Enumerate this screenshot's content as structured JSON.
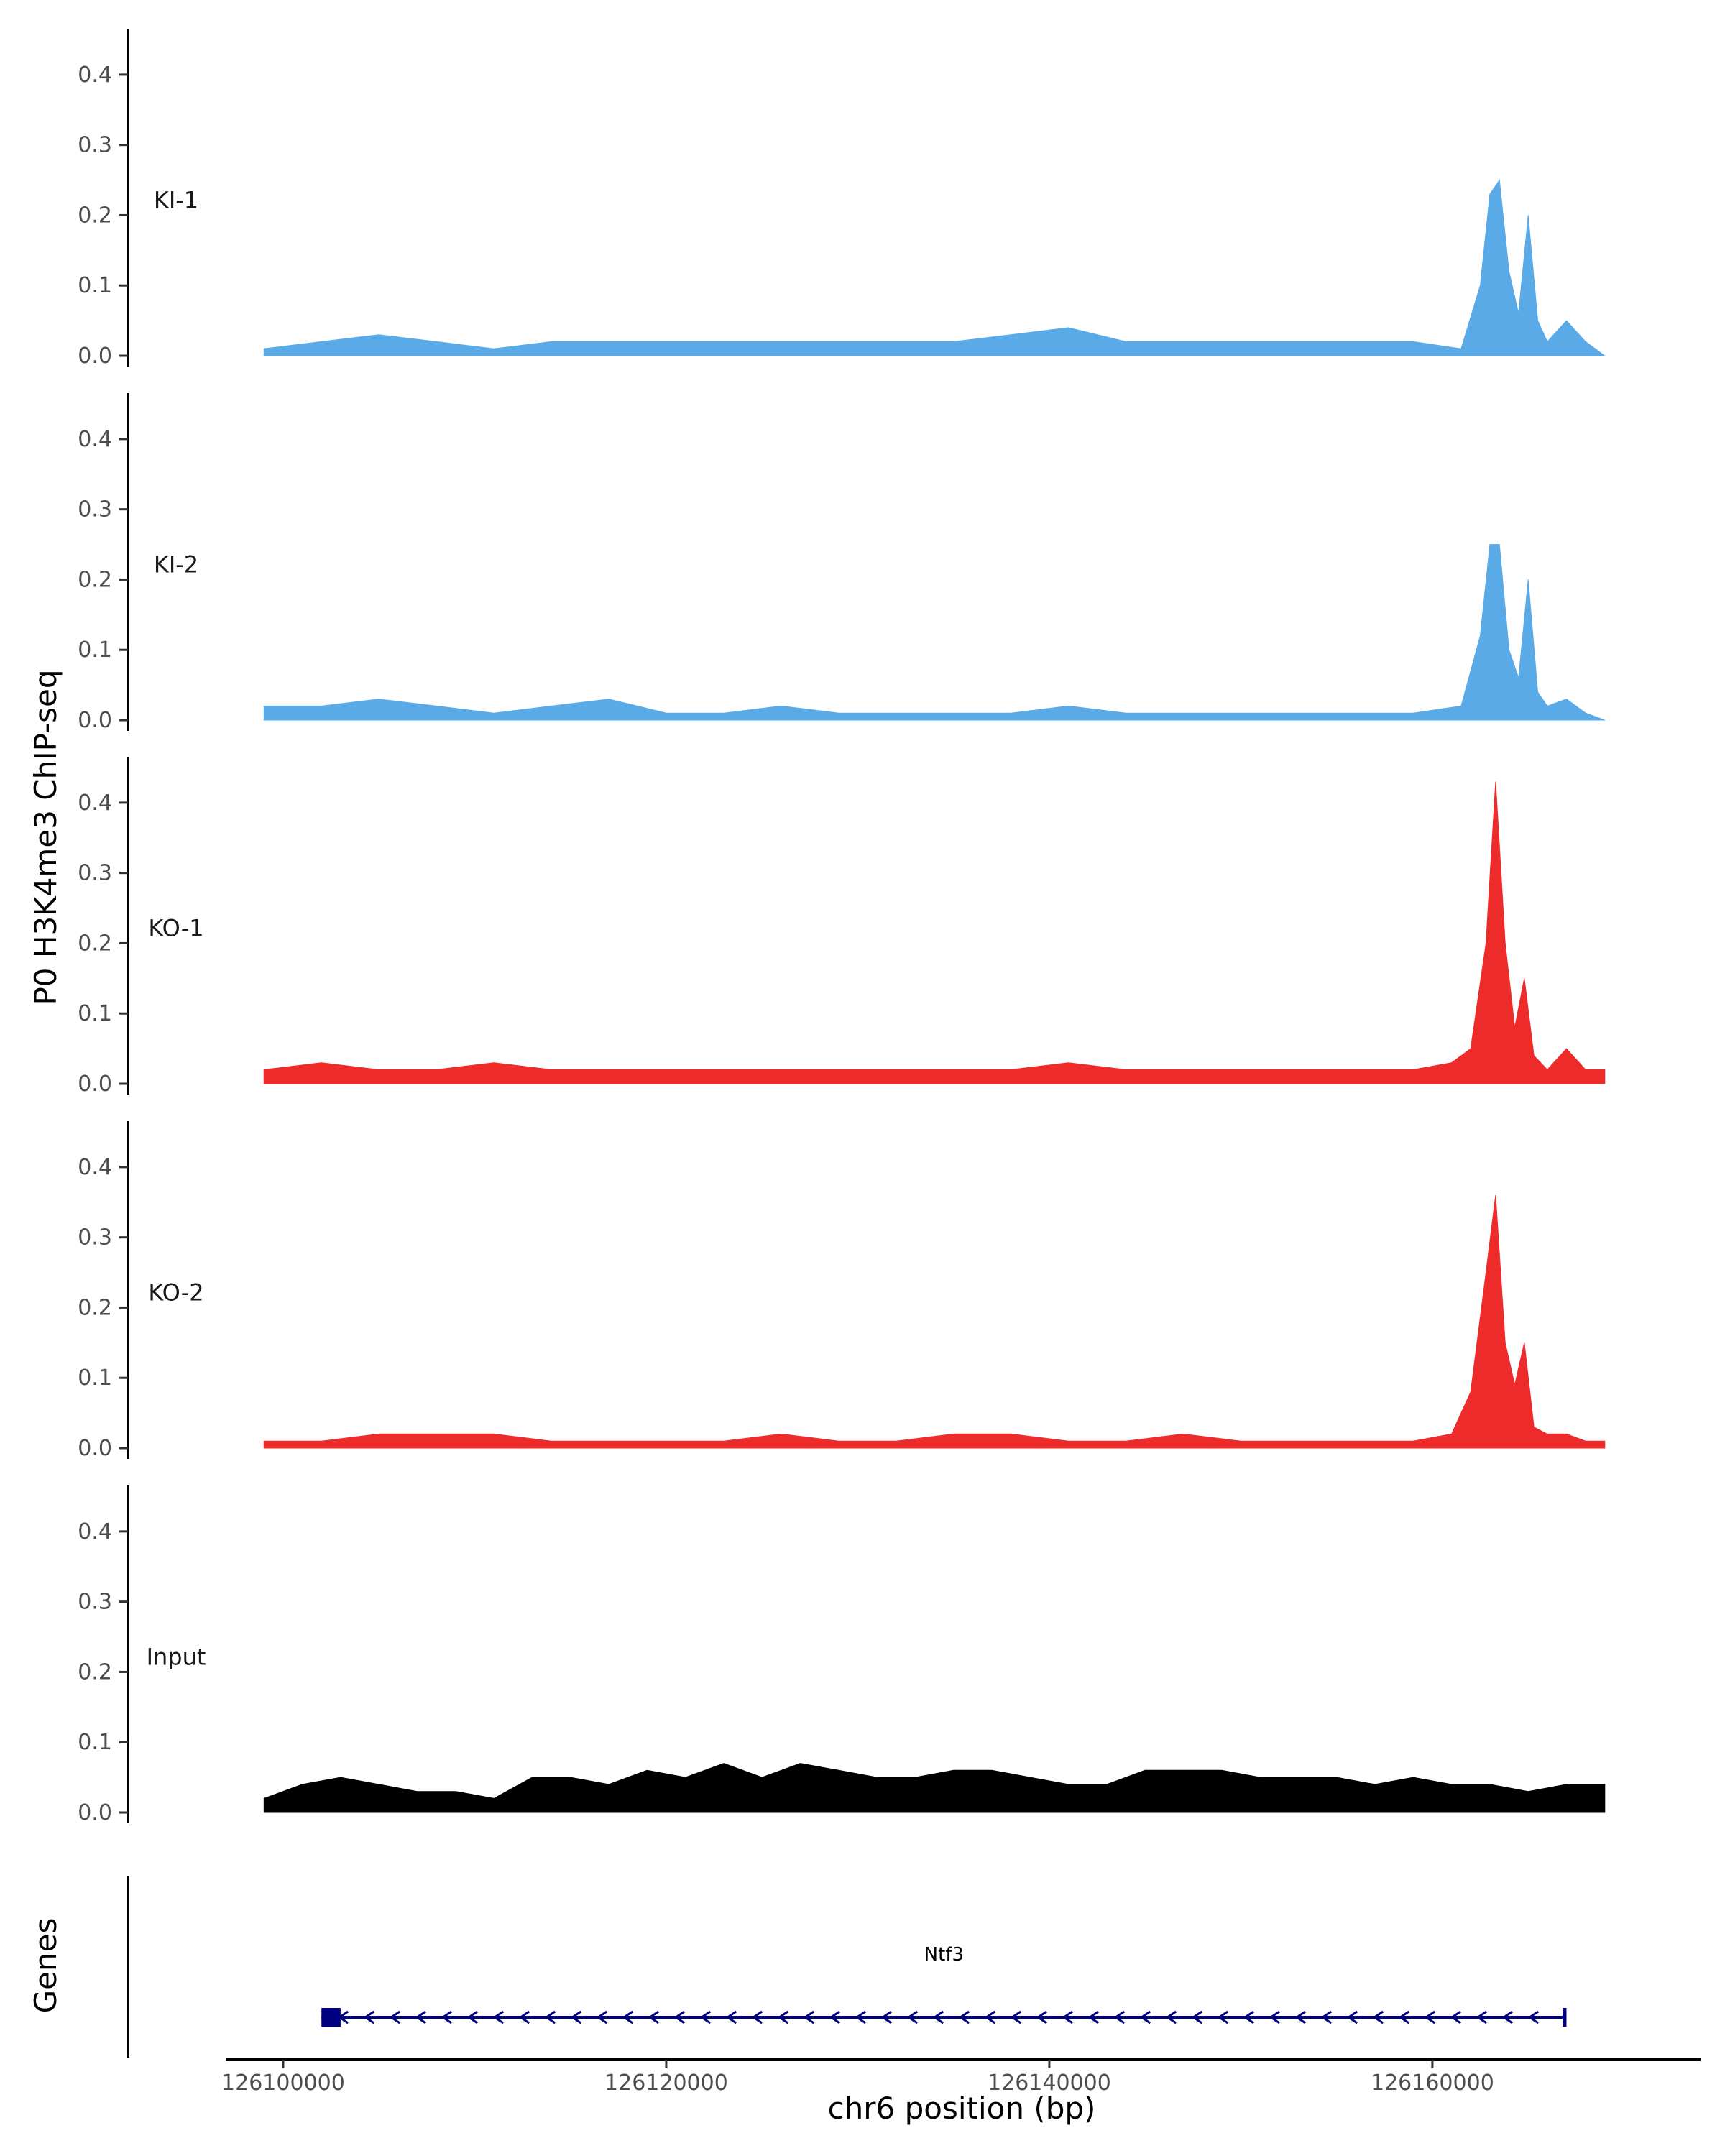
{
  "chart_data": {
    "type": "area",
    "ylabel": "P0 H3K4me3 ChIP-seq",
    "xlabel": "chr6 position (bp)",
    "xlim": [
      126097000,
      126174000
    ],
    "ylim": [
      0,
      0.45
    ],
    "y_ticks": [
      "0.0",
      "0.1",
      "0.2",
      "0.3",
      "0.4"
    ],
    "y_tick_values": [
      0,
      0.1,
      0.2,
      0.3,
      0.4
    ],
    "x_ticks": [
      "126100000",
      "126120000",
      "126140000",
      "126160000"
    ],
    "x_tick_values": [
      126100000,
      126120000,
      126140000,
      126160000
    ],
    "grid": false,
    "legend": "none",
    "tracks": [
      {
        "name": "KI-1",
        "color": "#5aaae8",
        "x": [
          126099000,
          126102000,
          126105000,
          126108000,
          126111000,
          126114000,
          126117000,
          126120000,
          126123000,
          126126000,
          126129000,
          126132000,
          126135000,
          126138000,
          126141000,
          126144000,
          126147000,
          126150000,
          126153000,
          126156000,
          126159000,
          126161500,
          126162500,
          126163000,
          126163500,
          126164000,
          126164500,
          126165000,
          126165500,
          126166000,
          126167000,
          126168000,
          126169000
        ],
        "values": [
          0.01,
          0.02,
          0.03,
          0.02,
          0.01,
          0.02,
          0.02,
          0.02,
          0.02,
          0.02,
          0.02,
          0.02,
          0.02,
          0.03,
          0.04,
          0.02,
          0.02,
          0.02,
          0.02,
          0.02,
          0.02,
          0.01,
          0.1,
          0.23,
          0.25,
          0.12,
          0.06,
          0.2,
          0.05,
          0.02,
          0.05,
          0.02,
          0.0
        ]
      },
      {
        "name": "KI-2",
        "color": "#5aaae8",
        "x": [
          126099000,
          126102000,
          126105000,
          126108000,
          126111000,
          126114000,
          126117000,
          126120000,
          126123000,
          126126000,
          126129000,
          126132000,
          126135000,
          126138000,
          126141000,
          126144000,
          126147000,
          126150000,
          126153000,
          126156000,
          126159000,
          126161500,
          126162500,
          126163000,
          126163500,
          126164000,
          126164500,
          126165000,
          126165500,
          126166000,
          126167000,
          126168000,
          126169000
        ],
        "values": [
          0.02,
          0.02,
          0.03,
          0.02,
          0.01,
          0.02,
          0.03,
          0.01,
          0.01,
          0.02,
          0.01,
          0.01,
          0.01,
          0.01,
          0.02,
          0.01,
          0.01,
          0.01,
          0.01,
          0.01,
          0.01,
          0.02,
          0.12,
          0.25,
          0.25,
          0.1,
          0.06,
          0.2,
          0.04,
          0.02,
          0.03,
          0.01,
          0.0
        ]
      },
      {
        "name": "KO-1",
        "color": "#ee2b2b",
        "x": [
          126099000,
          126102000,
          126105000,
          126108000,
          126111000,
          126114000,
          126117000,
          126120000,
          126123000,
          126126000,
          126129000,
          126132000,
          126135000,
          126138000,
          126141000,
          126144000,
          126147000,
          126150000,
          126153000,
          126156000,
          126159000,
          126161000,
          126162000,
          126162800,
          126163300,
          126163800,
          126164300,
          126164800,
          126165300,
          126166000,
          126167000,
          126168000,
          126169000
        ],
        "values": [
          0.02,
          0.03,
          0.02,
          0.02,
          0.03,
          0.02,
          0.02,
          0.02,
          0.02,
          0.02,
          0.02,
          0.02,
          0.02,
          0.02,
          0.03,
          0.02,
          0.02,
          0.02,
          0.02,
          0.02,
          0.02,
          0.03,
          0.05,
          0.2,
          0.43,
          0.2,
          0.08,
          0.15,
          0.04,
          0.02,
          0.05,
          0.02,
          0.02
        ]
      },
      {
        "name": "KO-2",
        "color": "#ee2b2b",
        "x": [
          126099000,
          126102000,
          126105000,
          126108000,
          126111000,
          126114000,
          126117000,
          126120000,
          126123000,
          126126000,
          126129000,
          126132000,
          126135000,
          126138000,
          126141000,
          126144000,
          126147000,
          126150000,
          126153000,
          126156000,
          126159000,
          126161000,
          126162000,
          126162800,
          126163300,
          126163800,
          126164300,
          126164800,
          126165300,
          126166000,
          126167000,
          126168000,
          126169000
        ],
        "values": [
          0.01,
          0.01,
          0.02,
          0.02,
          0.02,
          0.01,
          0.01,
          0.01,
          0.01,
          0.02,
          0.01,
          0.01,
          0.02,
          0.02,
          0.01,
          0.01,
          0.02,
          0.01,
          0.01,
          0.01,
          0.01,
          0.02,
          0.08,
          0.25,
          0.36,
          0.15,
          0.09,
          0.15,
          0.03,
          0.02,
          0.02,
          0.01,
          0.01
        ]
      },
      {
        "name": "Input",
        "color": "#000000",
        "x": [
          126099000,
          126101000,
          126103000,
          126105000,
          126107000,
          126109000,
          126111000,
          126113000,
          126115000,
          126117000,
          126119000,
          126121000,
          126123000,
          126125000,
          126127000,
          126129000,
          126131000,
          126133000,
          126135000,
          126137000,
          126139000,
          126141000,
          126143000,
          126145000,
          126147000,
          126149000,
          126151000,
          126153000,
          126155000,
          126157000,
          126159000,
          126161000,
          126163000,
          126165000,
          126167000,
          126169000
        ],
        "values": [
          0.02,
          0.04,
          0.05,
          0.04,
          0.03,
          0.03,
          0.02,
          0.05,
          0.05,
          0.04,
          0.06,
          0.05,
          0.07,
          0.05,
          0.07,
          0.06,
          0.05,
          0.05,
          0.06,
          0.06,
          0.05,
          0.04,
          0.04,
          0.06,
          0.06,
          0.06,
          0.05,
          0.05,
          0.05,
          0.04,
          0.05,
          0.04,
          0.04,
          0.03,
          0.04,
          0.04
        ]
      }
    ],
    "genes": {
      "track_label": "Genes",
      "items": [
        {
          "name": "Ntf3",
          "start": 126102000,
          "end": 126167000,
          "strand": "-",
          "color": "#000080",
          "exons": [
            [
              126102000,
              126103000
            ],
            [
              126166800,
              126167000
            ]
          ]
        }
      ]
    }
  }
}
